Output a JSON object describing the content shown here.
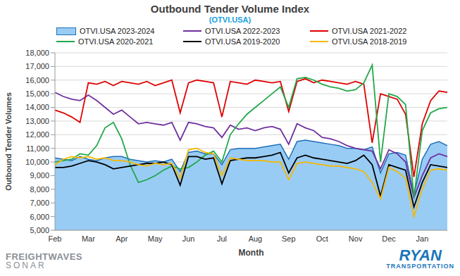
{
  "chart_data": {
    "type": "line",
    "title": "Outbound Tender Volume Index",
    "subtitle": "(OTVI.USA)",
    "x_label": "Month",
    "y_label": "Outbound Tender Volumes",
    "annotations": [
      "FREIGHTWAVES",
      "SONAR",
      "RYAN",
      "TRANSPORTATION"
    ],
    "grid": true,
    "legend": "top",
    "categories": [
      "Feb",
      null,
      null,
      null,
      "Mar",
      null,
      null,
      null,
      "Apr",
      null,
      null,
      null,
      "May",
      null,
      null,
      null,
      "Jun",
      null,
      null,
      null,
      "Jul",
      null,
      null,
      null,
      "Aug",
      null,
      null,
      null,
      "Sep",
      null,
      null,
      null,
      "Oct",
      null,
      null,
      null,
      "Nov",
      null,
      null,
      null,
      "Dec",
      null,
      null,
      null,
      "Jan",
      null,
      null,
      null
    ],
    "ylim": [
      5000,
      18000
    ],
    "yticks": [
      {
        "value": 5000,
        "label": "5,000"
      },
      {
        "value": 6000,
        "label": "6,000"
      },
      {
        "value": 7000,
        "label": "7,000"
      },
      {
        "value": 8000,
        "label": "8,000"
      },
      {
        "value": 9000,
        "label": "9,000"
      },
      {
        "value": 10000,
        "label": "10,000"
      },
      {
        "value": 11000,
        "label": "11,000"
      },
      {
        "value": 12000,
        "label": "12,000"
      },
      {
        "value": 13000,
        "label": "13,000"
      },
      {
        "value": 14000,
        "label": "14,000"
      },
      {
        "value": 15000,
        "label": "15,000"
      },
      {
        "value": 16000,
        "label": "16,000"
      },
      {
        "value": 17000,
        "label": "17,000"
      },
      {
        "value": 18000,
        "label": "18,000"
      }
    ],
    "series": [
      {
        "name": "OTVI.USA 2023-2024",
        "type": "area",
        "color": "#1f6fb8",
        "values": [
          10300,
          10200,
          10100,
          10400,
          10200,
          10100,
          10300,
          10400,
          10400,
          10200,
          10100,
          10000,
          10100,
          10000,
          10200,
          9300,
          10700,
          10800,
          10600,
          10600,
          9800,
          10900,
          11000,
          11000,
          11000,
          11100,
          11200,
          11300,
          10200,
          11500,
          11600,
          11500,
          11400,
          11300,
          11200,
          11000,
          11000,
          10900,
          11100,
          9200,
          10600,
          10700,
          10500,
          7600,
          10200,
          11300,
          11500,
          11200
        ]
      },
      {
        "name": "OTVI.USA 2022-2023",
        "type": "line",
        "color": "#7030a0",
        "values": [
          15100,
          14800,
          14600,
          14500,
          14900,
          14500,
          14000,
          13500,
          13800,
          13300,
          12800,
          12900,
          12800,
          12700,
          12900,
          11600,
          12900,
          12800,
          12600,
          12500,
          11800,
          12700,
          12400,
          12500,
          12300,
          12500,
          12600,
          12400,
          11300,
          12800,
          12500,
          12300,
          11800,
          11700,
          11500,
          11200,
          11000,
          10900,
          10800,
          9500,
          10900,
          10600,
          10000,
          7400,
          9000,
          10300,
          10600,
          10400
        ]
      },
      {
        "name": "OTVI.USA 2021-2022",
        "type": "line",
        "color": "#e00000",
        "values": [
          13800,
          13600,
          13300,
          12900,
          15800,
          15700,
          15900,
          15600,
          15900,
          15800,
          15700,
          15900,
          15600,
          15800,
          16000,
          13600,
          15800,
          16000,
          15900,
          15800,
          13300,
          15900,
          15800,
          15700,
          16000,
          15900,
          15800,
          15900,
          13700,
          15900,
          16100,
          15800,
          16000,
          15900,
          15800,
          15700,
          15900,
          15700,
          11400,
          15000,
          14800,
          14600,
          13500,
          8900,
          12800,
          14500,
          15200,
          15100
        ]
      },
      {
        "name": "OTVI.USA 2020-2021",
        "type": "line",
        "color": "#22a84a",
        "values": [
          10000,
          10100,
          10200,
          10600,
          10500,
          11200,
          12500,
          12900,
          11700,
          9800,
          8500,
          8700,
          9000,
          9400,
          9700,
          9500,
          9600,
          10000,
          10500,
          10800,
          10000,
          12000,
          12800,
          13500,
          14000,
          14500,
          15000,
          15500,
          14000,
          16100,
          16200,
          16000,
          15700,
          15500,
          15400,
          15200,
          15300,
          15800,
          17100,
          10000,
          15000,
          14800,
          14200,
          7400,
          12300,
          13600,
          13900,
          14000
        ]
      },
      {
        "name": "OTVI.USA 2019-2020",
        "type": "line",
        "color": "#000000",
        "values": [
          9600,
          9600,
          9700,
          9900,
          10100,
          10000,
          9800,
          9500,
          9600,
          9700,
          9800,
          9900,
          9900,
          10000,
          9800,
          8300,
          10400,
          10400,
          10200,
          10300,
          8400,
          10100,
          10200,
          10300,
          10300,
          10400,
          10500,
          10700,
          9200,
          10300,
          10500,
          10300,
          10200,
          10100,
          10000,
          9900,
          10100,
          10500,
          9800,
          7500,
          9800,
          9600,
          9400,
          6700,
          8500,
          9800,
          9700,
          9600
        ]
      },
      {
        "name": "OTVI.USA 2018-2019",
        "type": "line",
        "color": "#f5b800",
        "values": [
          9800,
          10200,
          10400,
          10300,
          10400,
          10200,
          10300,
          10100,
          10100,
          10000,
          9800,
          9700,
          9900,
          9800,
          9900,
          8800,
          10900,
          11000,
          10700,
          10600,
          9000,
          10300,
          10200,
          10100,
          10100,
          10100,
          10000,
          10000,
          8700,
          9900,
          10000,
          9900,
          9800,
          9700,
          9700,
          9600,
          9500,
          9300,
          8500,
          7300,
          9600,
          9300,
          8800,
          6000,
          8000,
          9400,
          9500,
          9400
        ]
      }
    ]
  }
}
